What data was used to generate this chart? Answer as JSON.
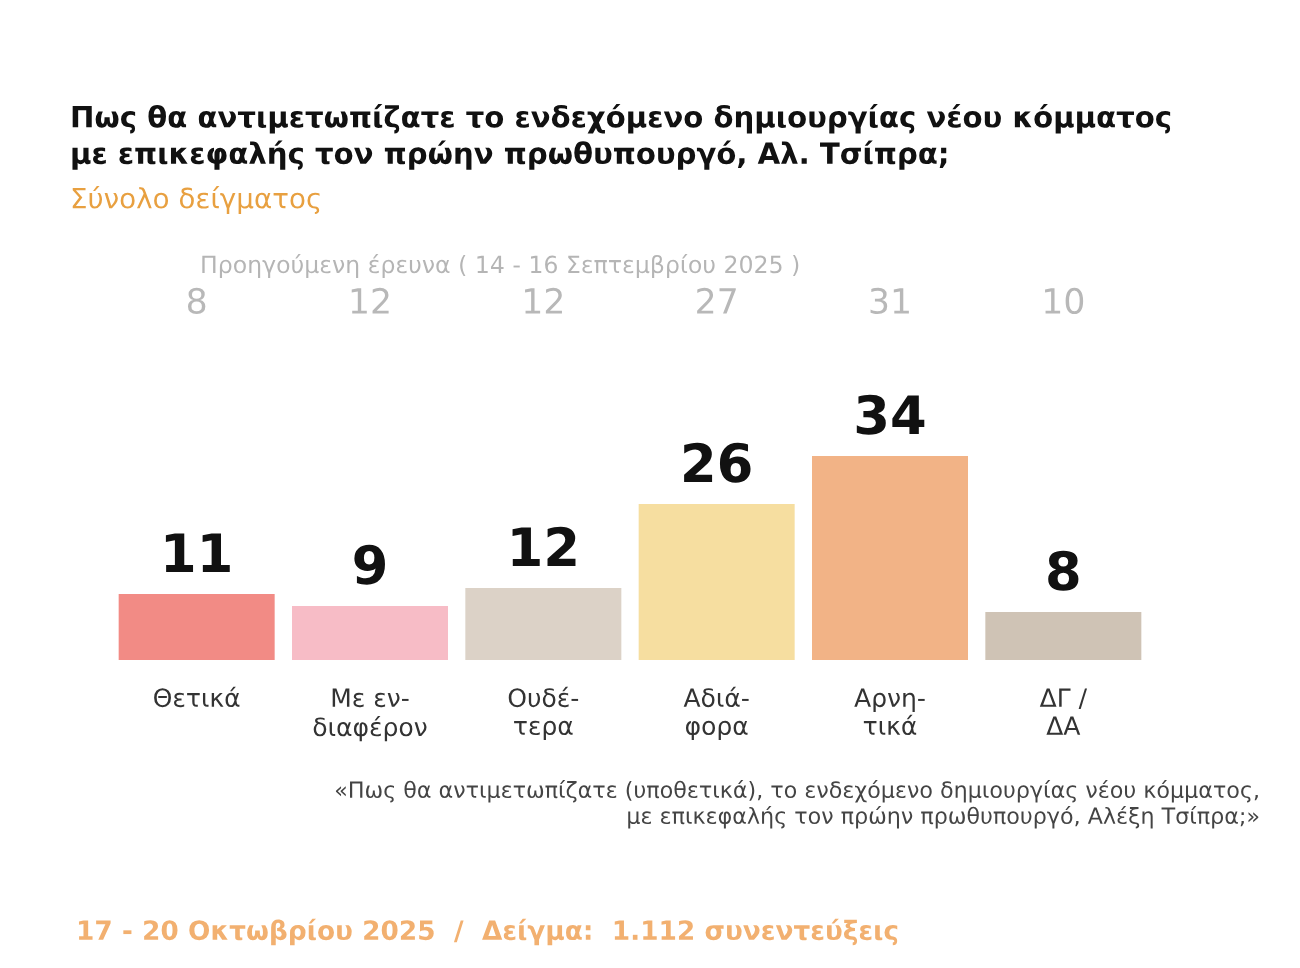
{
  "chart_data": {
    "type": "bar",
    "title": "Πως θα αντιμετωπίζατε το ενδεχόμενο δημιουργίας νέου κόμματος\nμε επικεφαλής τον πρώην πρωθυπουργό, Αλ. Τσίπρα;",
    "subtitle": "Σύνολο δείγματος",
    "categories": [
      "Θετικά",
      "Με εν-\nδιαφέρον",
      "Ουδέ-\nτερα",
      "Αδιά-\nφορα",
      "Αρνη-\nτικά",
      "ΔΓ /\nΔΑ"
    ],
    "values": [
      11,
      9,
      12,
      26,
      34,
      8
    ],
    "colors": [
      "#f28b85",
      "#f7bcc6",
      "#dcd2c7",
      "#f6dea0",
      "#f2b386",
      "#cfc3b5"
    ],
    "data_labels": true,
    "grid": false,
    "legend": false,
    "annotations": [
      {
        "text": "Προηγούμενη έρευνα ( 14 - 16 Σεπτεμβρίου 2025 )"
      },
      "8",
      "12",
      "12",
      "27",
      "31",
      "10",
      {
        "text": "«Πως θα αντιμετωπίζατε (υποθετικά), το ενδεχόμενο δημιουργίας νέου κόμματος,\nμε επικεφαλής τον πρώην πρωθυπουργό, Αλέξη Τσίπρα;»"
      },
      {
        "text": "17 - 20 Οκτωβρίου 2025  /  Δείγμα:  1.112 συνεντεύξεις"
      }
    ]
  }
}
